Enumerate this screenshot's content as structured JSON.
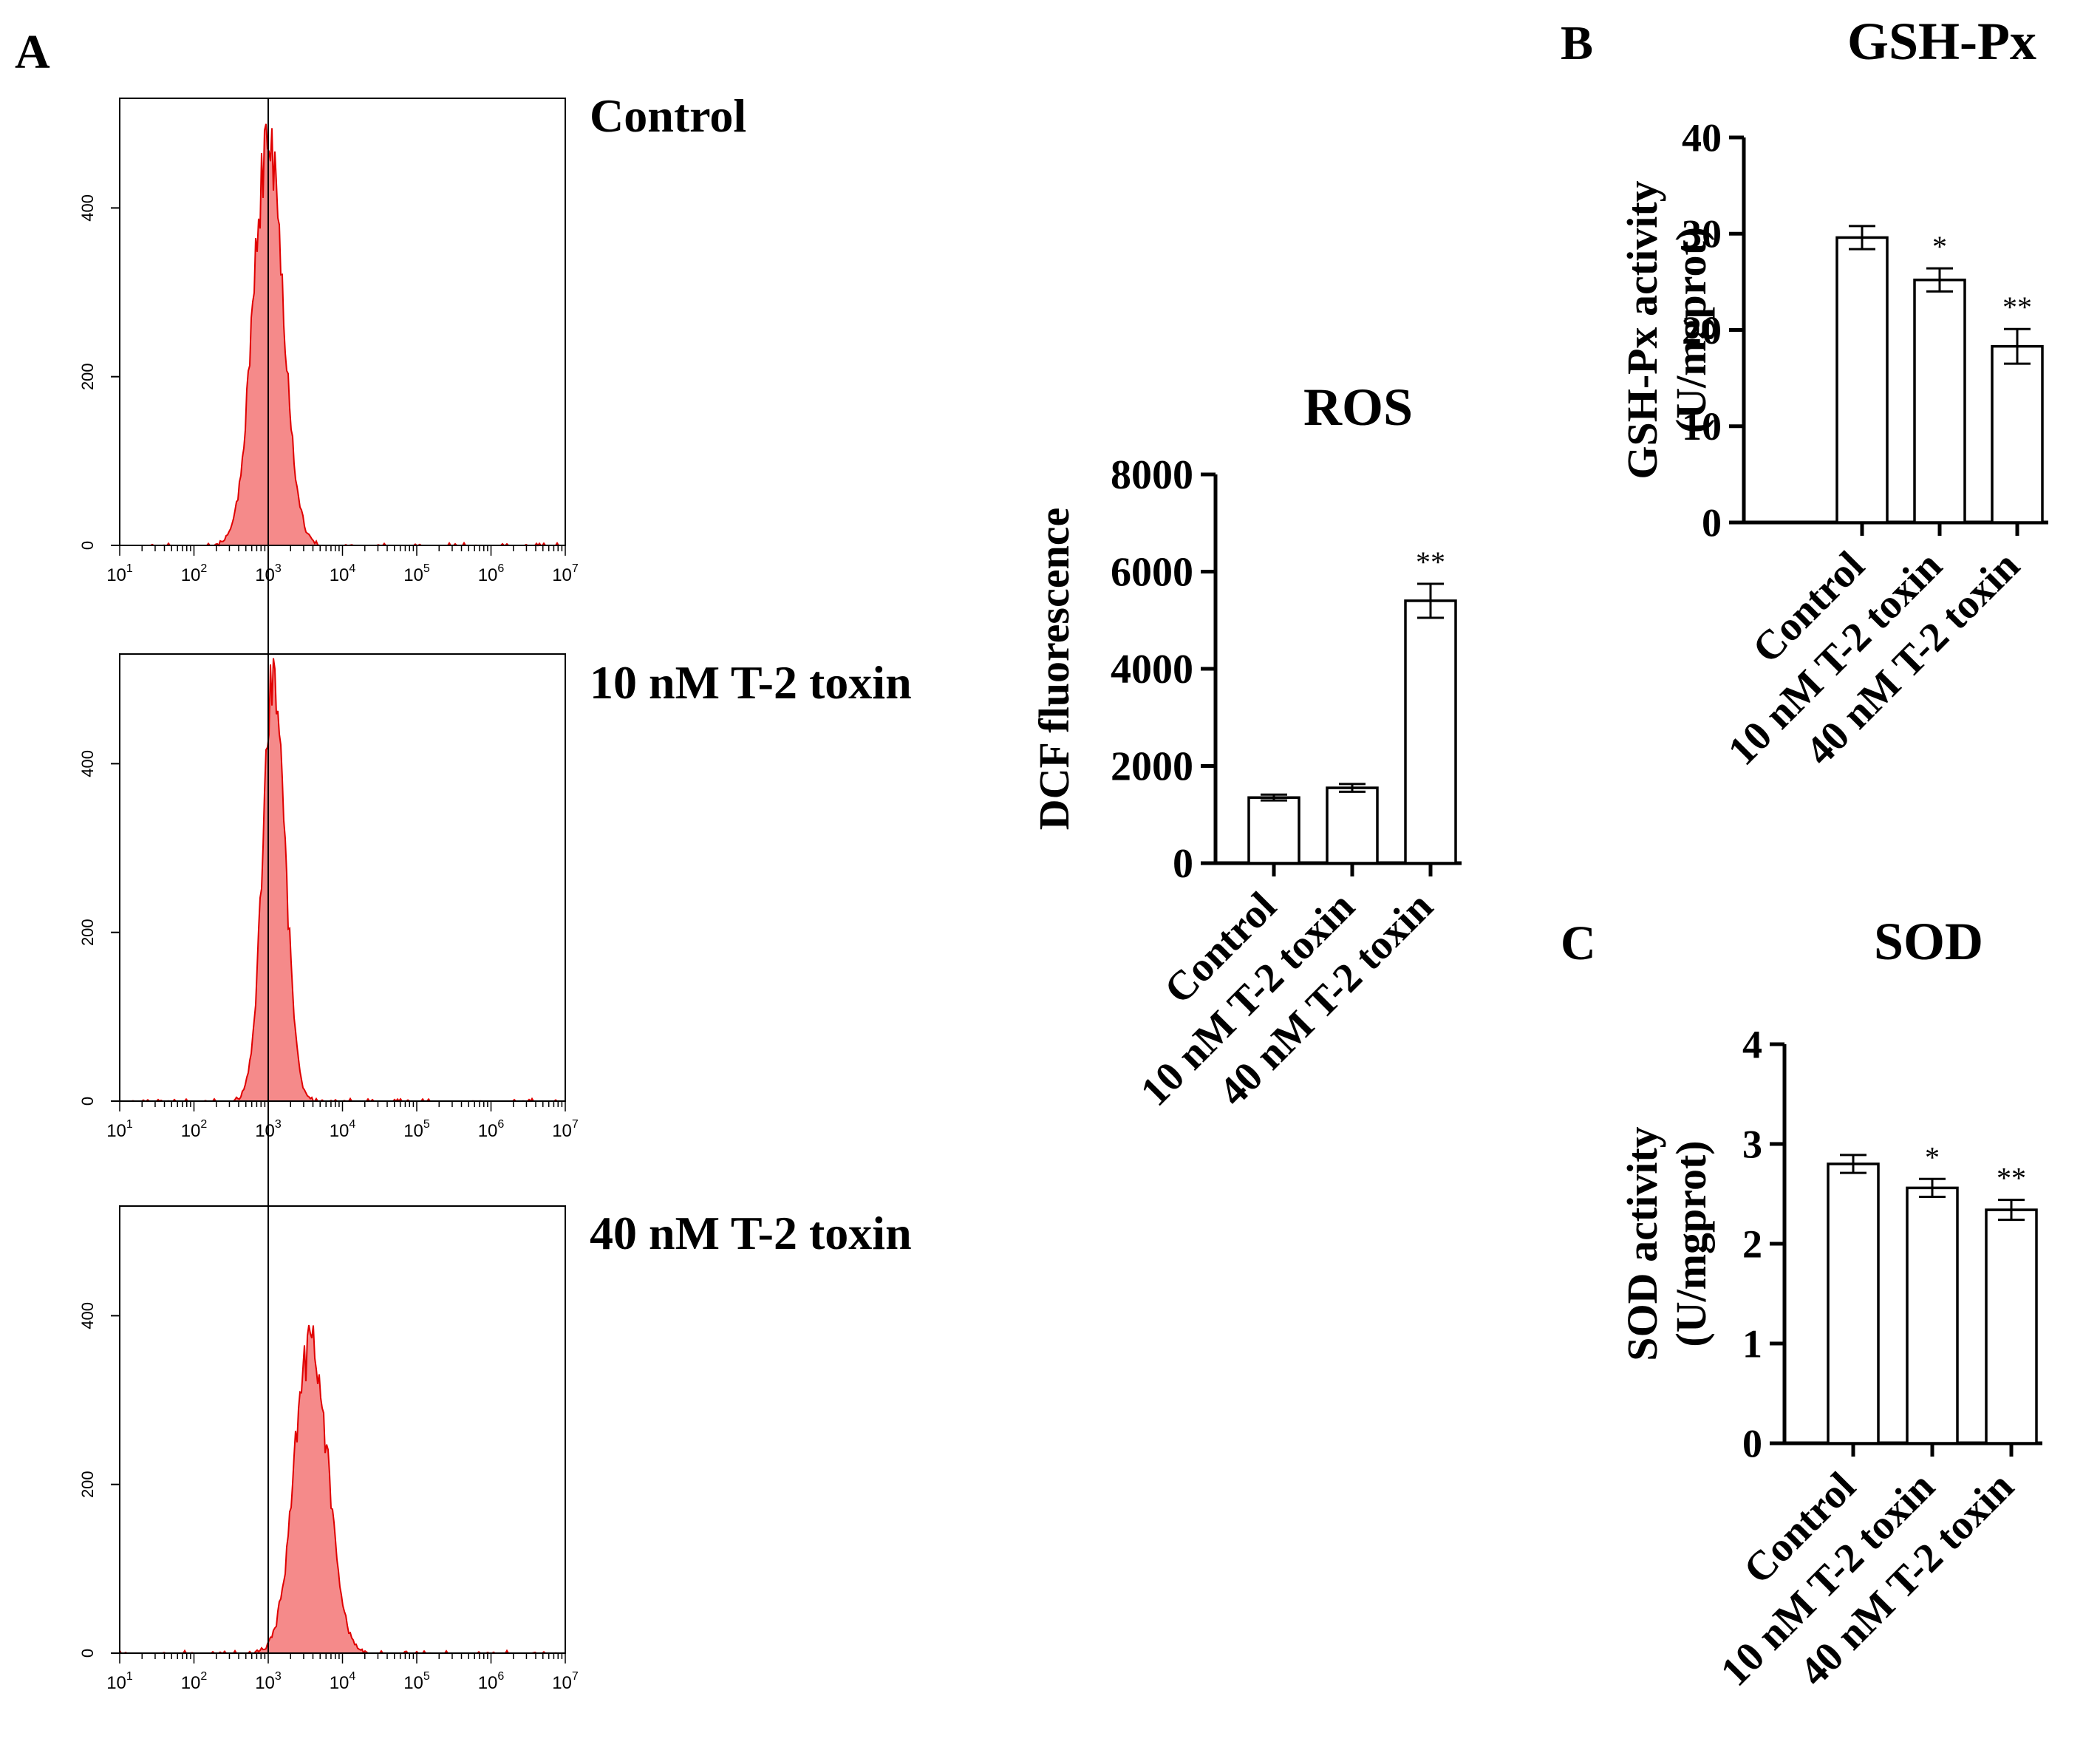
{
  "panel_labels": {
    "a": "A",
    "b": "B",
    "c": "C"
  },
  "chart_data": [
    {
      "id": "flow",
      "type": "area",
      "x_scale": "log",
      "xlim": [
        10,
        10000000
      ],
      "ylim": [
        0,
        530
      ],
      "x_tick_labels": [
        {
          "base": "10",
          "exp": "1"
        },
        {
          "base": "10",
          "exp": "2"
        },
        {
          "base": "10",
          "exp": "3"
        },
        {
          "base": "10",
          "exp": "4"
        },
        {
          "base": "10",
          "exp": "5"
        },
        {
          "base": "10",
          "exp": "6"
        },
        {
          "base": "10",
          "exp": "7"
        }
      ],
      "y_ticks": [
        0,
        200,
        400
      ],
      "y_tick_labels": [
        "0",
        "200",
        "400"
      ],
      "gate_at": 1000,
      "fill_color": "#f58a8a",
      "line_color": "#e00000",
      "histograms": [
        {
          "title": "Control",
          "mean_log": 3.0,
          "sd_log": 0.2,
          "peak": 478,
          "seed": 11
        },
        {
          "title": "10 nM T-2 toxin",
          "mean_log": 3.08,
          "sd_log": 0.15,
          "peak": 498,
          "seed": 29
        },
        {
          "title": "40 nM T-2 toxin",
          "mean_log": 3.58,
          "sd_log": 0.22,
          "peak": 378,
          "seed": 47
        }
      ]
    },
    {
      "id": "ros",
      "type": "bar",
      "title": "ROS",
      "ylabel": "DCF fluorescence",
      "categories": [
        "Control",
        "10 nM T-2 toxin",
        "40 nM T-2 toxin"
      ],
      "values": [
        1350,
        1550,
        5400
      ],
      "errors": [
        60,
        80,
        350
      ],
      "significance": [
        "",
        "",
        "**"
      ],
      "ylim": [
        0,
        8000
      ],
      "y_ticks": [
        0,
        2000,
        4000,
        6000,
        8000
      ],
      "y_tick_labels": [
        "0",
        "2000",
        "4000",
        "6000",
        "8000"
      ]
    },
    {
      "id": "gsh",
      "type": "bar",
      "title": "GSH-Px",
      "ylabel": "GSH-Px activity",
      "ylabel2": "(U/mgprot)",
      "categories": [
        "Control",
        "10 nM T-2 toxin",
        "40 nM T-2 toxin"
      ],
      "values": [
        29.6,
        25.2,
        18.3
      ],
      "errors": [
        1.2,
        1.2,
        1.8
      ],
      "significance": [
        "",
        "*",
        "**"
      ],
      "ylim": [
        0,
        40
      ],
      "y_ticks": [
        0,
        10,
        20,
        30,
        40
      ],
      "y_tick_labels": [
        "0",
        "10",
        "20",
        "30",
        "40"
      ]
    },
    {
      "id": "sod",
      "type": "bar",
      "title": "SOD",
      "ylabel": "SOD activity",
      "ylabel2": "(U/mgprot)",
      "categories": [
        "Control",
        "10 nM T-2 toxin",
        "40 nM T-2 toxin"
      ],
      "values": [
        2.8,
        2.56,
        2.34
      ],
      "errors": [
        0.09,
        0.09,
        0.1
      ],
      "significance": [
        "",
        "*",
        "**"
      ],
      "ylim": [
        0,
        4
      ],
      "y_ticks": [
        0,
        1,
        2,
        3,
        4
      ],
      "y_tick_labels": [
        "0",
        "1",
        "2",
        "3",
        "4"
      ]
    }
  ]
}
